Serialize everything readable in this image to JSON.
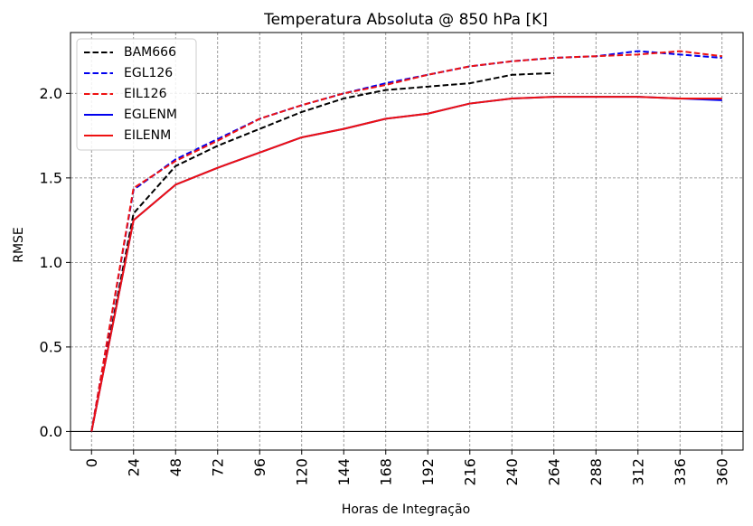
{
  "chart_data": {
    "type": "line",
    "title": "Temperatura Absoluta @ 850 hPa [K]",
    "xlabel": "Horas de Integração",
    "ylabel": "RMSE",
    "xlim": [
      -12,
      372
    ],
    "ylim": [
      -0.11,
      2.36
    ],
    "xticks": [
      0,
      24,
      48,
      72,
      96,
      120,
      144,
      168,
      192,
      216,
      240,
      264,
      288,
      312,
      336,
      360
    ],
    "yticks": [
      "0.0",
      "0.5",
      "1.0",
      "1.5",
      "2.0"
    ],
    "grid": true,
    "legend_position": "top-left",
    "series": [
      {
        "name": "BAM666",
        "color": "#000000",
        "style": "dashed",
        "x": [
          0,
          24,
          48,
          72,
          96,
          120,
          144,
          168,
          192,
          216,
          240,
          264
        ],
        "values": [
          0.0,
          1.29,
          1.57,
          1.69,
          1.79,
          1.89,
          1.97,
          2.02,
          2.04,
          2.06,
          2.11,
          2.12
        ]
      },
      {
        "name": "EGL126",
        "color": "#0000ee",
        "style": "dashed",
        "x": [
          0,
          24,
          48,
          72,
          96,
          120,
          144,
          168,
          192,
          216,
          240,
          264,
          288,
          312,
          336,
          360
        ],
        "values": [
          0.0,
          1.43,
          1.61,
          1.73,
          1.85,
          1.93,
          2.0,
          2.06,
          2.11,
          2.16,
          2.19,
          2.21,
          2.22,
          2.25,
          2.23,
          2.21
        ]
      },
      {
        "name": "EIL126",
        "color": "#ee1111",
        "style": "dashed",
        "x": [
          0,
          24,
          48,
          72,
          96,
          120,
          144,
          168,
          192,
          216,
          240,
          264,
          288,
          312,
          336,
          360
        ],
        "values": [
          0.0,
          1.44,
          1.6,
          1.72,
          1.85,
          1.93,
          2.0,
          2.05,
          2.11,
          2.16,
          2.19,
          2.21,
          2.22,
          2.23,
          2.25,
          2.22
        ]
      },
      {
        "name": "EGLENM",
        "color": "#0000ee",
        "style": "solid",
        "x": [
          0,
          24,
          48,
          72,
          96,
          120,
          144,
          168,
          192,
          216,
          240,
          264,
          288,
          312,
          336,
          360
        ],
        "values": [
          0.0,
          1.25,
          1.46,
          1.56,
          1.65,
          1.74,
          1.79,
          1.85,
          1.88,
          1.94,
          1.97,
          1.98,
          1.98,
          1.98,
          1.97,
          1.96
        ]
      },
      {
        "name": "EILENM",
        "color": "#ee1111",
        "style": "solid",
        "x": [
          0,
          24,
          48,
          72,
          96,
          120,
          144,
          168,
          192,
          216,
          240,
          264,
          288,
          312,
          336,
          360
        ],
        "values": [
          0.0,
          1.25,
          1.46,
          1.56,
          1.65,
          1.74,
          1.79,
          1.85,
          1.88,
          1.94,
          1.97,
          1.98,
          1.98,
          1.98,
          1.97,
          1.97
        ]
      }
    ]
  }
}
